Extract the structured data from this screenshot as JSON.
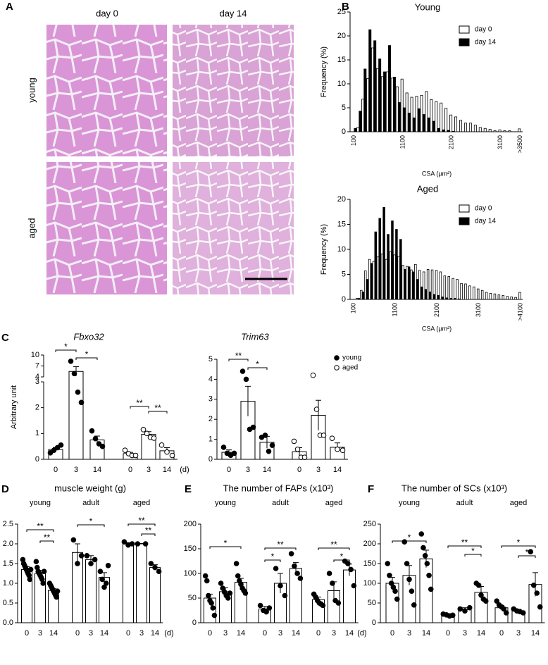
{
  "panels": [
    "A",
    "B",
    "C",
    "D",
    "E",
    "F"
  ],
  "micrographs": {
    "columns": [
      "day 0",
      "day 14"
    ],
    "rows": [
      "young",
      "aged"
    ]
  },
  "chart_data": [
    {
      "type": "bar",
      "title": "Young",
      "xlabel": "CSA (µm²)",
      "ylabel": "Frequency (%)",
      "legend": "upper right",
      "categories": [
        "100",
        null,
        null,
        null,
        null,
        null,
        null,
        null,
        null,
        null,
        "1100",
        null,
        null,
        null,
        null,
        null,
        null,
        null,
        null,
        null,
        "2100",
        null,
        null,
        null,
        null,
        null,
        null,
        null,
        null,
        null,
        "3100",
        null,
        null,
        null,
        ">3500"
      ],
      "series": [
        {
          "name": "day 0",
          "color": "#ffffff",
          "values": [
            0,
            0.9,
            6.8,
            11.1,
            17.5,
            13.2,
            11.5,
            12.5,
            11.2,
            9.4,
            11.0,
            8.1,
            7.2,
            7.4,
            7.6,
            8.4,
            6.7,
            6.3,
            6.0,
            4.9,
            3.5,
            3.1,
            2.4,
            1.8,
            1.8,
            1.4,
            0.9,
            0.7,
            0.5,
            0.2,
            0.4,
            0.2,
            0.2,
            0,
            0.6
          ]
        },
        {
          "name": "day 14",
          "color": "#000000",
          "values": [
            0.7,
            4.3,
            13.1,
            21.3,
            19.0,
            15.2,
            12.5,
            18.0,
            11.4,
            6.1,
            5.0,
            3.9,
            2.9,
            4.8,
            3.6,
            2.9,
            2.2,
            0.7,
            0.4,
            0.3,
            0.1,
            0,
            0,
            0,
            0,
            0,
            0,
            0,
            0,
            0,
            0,
            0,
            0,
            0,
            0
          ]
        }
      ],
      "ylim": [
        0,
        25
      ],
      "yticks": [
        0,
        5,
        10,
        15,
        20,
        25
      ]
    },
    {
      "type": "bar",
      "title": "Aged",
      "xlabel": "CSA (µm²)",
      "ylabel": "Frequency (%)",
      "legend": "upper right",
      "categories": [
        "100",
        null,
        null,
        null,
        null,
        null,
        null,
        null,
        null,
        null,
        "1100",
        null,
        null,
        null,
        null,
        null,
        null,
        null,
        null,
        null,
        "2100",
        null,
        null,
        null,
        null,
        null,
        null,
        null,
        null,
        null,
        "3100",
        null,
        null,
        null,
        null,
        null,
        null,
        null,
        null,
        null,
        ">4100"
      ],
      "series": [
        {
          "name": "day 0",
          "color": "#ffffff",
          "values": [
            0,
            0.2,
            1.8,
            5.7,
            8.0,
            7.6,
            8.5,
            9.1,
            8.0,
            9.5,
            8.9,
            8.6,
            6.8,
            6.6,
            5.9,
            7.0,
            5.8,
            5.5,
            6.0,
            5.9,
            5.8,
            5.5,
            4.7,
            4.6,
            4.2,
            4.0,
            3.2,
            3.1,
            2.7,
            2.5,
            2.1,
            1.8,
            1.4,
            1.2,
            1.1,
            0.9,
            0.8,
            0.6,
            0.5,
            0.4,
            1.4
          ]
        },
        {
          "name": "day 14",
          "color": "#000000",
          "values": [
            0,
            0.2,
            1.5,
            4.0,
            7.2,
            13.5,
            16.2,
            18.4,
            13.0,
            15.7,
            14.0,
            12.0,
            6.0,
            6.5,
            5.5,
            4.0,
            2.5,
            2.0,
            1.5,
            1.0,
            0.8,
            0.5,
            0.3,
            0.2,
            0.2,
            0.1,
            0,
            0,
            0,
            0,
            0,
            0,
            0,
            0,
            0,
            0,
            0,
            0,
            0,
            0,
            0
          ]
        }
      ],
      "ylim": [
        0,
        20
      ],
      "yticks": [
        0,
        5,
        10,
        15,
        20
      ]
    },
    {
      "type": "dotbar",
      "title": "Fbxo32",
      "ylabel": "Arbitrary unit",
      "xunit": "(d)",
      "ylim": [
        0,
        10
      ],
      "ybreak": [
        3,
        4
      ],
      "yticks": [
        0,
        1,
        2,
        3,
        4,
        7,
        10
      ],
      "groups": [
        {
          "marker": "filled",
          "bars": [
            {
              "category": "0",
              "value": 0.38,
              "error": 0.08,
              "points": [
                0.25,
                0.35,
                0.45,
                0.55
              ]
            },
            {
              "category": "3",
              "value": 5.5,
              "error": 1.3,
              "points": [
                8.3,
                4.9,
                2.6,
                2.2
              ]
            },
            {
              "category": "14",
              "value": 0.75,
              "error": 0.15,
              "points": [
                1.1,
                0.8,
                0.6,
                0.5
              ]
            }
          ]
        },
        {
          "marker": "open",
          "bars": [
            {
              "category": "0",
              "value": 0.22,
              "error": 0.05,
              "points": [
                0.35,
                0.22,
                0.15,
                0.15
              ]
            },
            {
              "category": "3",
              "value": 0.97,
              "error": 0.1,
              "points": [
                1.15,
                1.0,
                0.85,
                0.82
              ]
            },
            {
              "category": "14",
              "value": 0.33,
              "error": 0.12,
              "points": [
                0.55,
                0.28,
                0.15
              ]
            }
          ]
        }
      ],
      "significance": [
        "*",
        "*",
        "**",
        "**"
      ]
    },
    {
      "type": "dotbar",
      "title": "Trim63",
      "legend": "upper right",
      "ylim": [
        0,
        5
      ],
      "yticks": [
        0,
        1,
        2,
        3,
        4,
        5
      ],
      "groups": [
        {
          "name": "young",
          "marker": "filled",
          "bars": [
            {
              "category": "0",
              "value": 0.35,
              "error": 0.12,
              "points": [
                0.6,
                0.3,
                0.2,
                0.3
              ]
            },
            {
              "category": "3",
              "value": 2.9,
              "error": 0.75,
              "points": [
                4.4,
                4.0,
                1.5,
                1.6
              ]
            },
            {
              "category": "14",
              "value": 0.85,
              "error": 0.3,
              "points": [
                1.1,
                1.2,
                0.4,
                0.7
              ]
            }
          ]
        },
        {
          "name": "aged",
          "marker": "open",
          "bars": [
            {
              "category": "0",
              "value": 0.38,
              "error": 0.2,
              "points": [
                0.9,
                0.5,
                0.1,
                0.1
              ]
            },
            {
              "category": "3",
              "value": 2.2,
              "error": 0.75,
              "points": [
                4.2,
                2.5,
                1.2,
                1.2
              ]
            },
            {
              "category": "14",
              "value": 0.6,
              "error": 0.22,
              "points": [
                1.05,
                0.5,
                0.45
              ]
            }
          ]
        }
      ],
      "significance": [
        "**",
        "*"
      ]
    },
    {
      "type": "dotbar",
      "title": "muscle weight (g)",
      "xunit": "(d)",
      "ylim": [
        0,
        2.5
      ],
      "yticks": [
        {
          "value": 0,
          "label": "0.0"
        },
        0.5,
        {
          "value": 1,
          "label": "1.0"
        },
        1.5,
        {
          "value": 2,
          "label": "2.0"
        },
        2.5
      ],
      "groups": [
        {
          "name": "young",
          "marker": "filled",
          "bars": [
            {
              "category": "0",
              "value": 1.35,
              "error": 0.07,
              "points": [
                1.6,
                1.5,
                1.45,
                1.4,
                1.35,
                1.3,
                1.25,
                1.2,
                1.1,
                1.35
              ]
            },
            {
              "category": "3",
              "value": 1.25,
              "error": 0.08,
              "points": [
                1.55,
                1.4,
                1.3,
                1.25,
                1.2,
                1.15,
                1.1,
                1.0,
                1.3
              ]
            },
            {
              "category": "14",
              "value": 0.82,
              "error": 0.05,
              "points": [
                1.0,
                0.95,
                0.9,
                0.85,
                0.8,
                0.75,
                0.7,
                0.65,
                0.8
              ]
            }
          ]
        },
        {
          "name": "adult",
          "marker": "filled",
          "bars": [
            {
              "category": "0",
              "value": 1.78,
              "error": 0.22,
              "points": [
                2.1,
                1.5,
                1.7
              ]
            },
            {
              "category": "3",
              "value": 1.6,
              "error": 0.1,
              "points": [
                1.7,
                1.5,
                1.6
              ]
            },
            {
              "category": "14",
              "value": 1.15,
              "error": 0.12,
              "points": [
                1.3,
                1.1,
                0.9,
                1.0,
                1.45
              ]
            }
          ]
        },
        {
          "name": "aged",
          "marker": "filled",
          "bars": [
            {
              "category": "0",
              "value": 2.0,
              "error": 0.03,
              "points": [
                2.05,
                1.97,
                2.0
              ]
            },
            {
              "category": "3",
              "value": 2.0,
              "error": 0.01,
              "points": [
                2.0,
                2.0
              ]
            },
            {
              "category": "14",
              "value": 1.4,
              "error": 0.07,
              "points": [
                1.5,
                1.4,
                1.3
              ]
            }
          ]
        }
      ],
      "significance": [
        "**",
        "**",
        "*",
        "**",
        "**"
      ]
    },
    {
      "type": "dotbar",
      "title": "The number of FAPs (x10³)",
      "xunit": "(d)",
      "ylim": [
        0,
        200
      ],
      "yticks": [
        0,
        50,
        100,
        150,
        200
      ],
      "groups": [
        {
          "name": "young",
          "marker": "filled",
          "bars": [
            {
              "category": "0",
              "value": 50,
              "error": 8,
              "points": [
                95,
                85,
                55,
                45,
                40,
                30,
                15
              ]
            },
            {
              "category": "3",
              "value": 63,
              "error": 8,
              "points": [
                80,
                70,
                62,
                55,
                50,
                60
              ]
            },
            {
              "category": "14",
              "value": 82,
              "error": 8,
              "points": [
                120,
                95,
                85,
                78,
                70,
                65,
                60
              ]
            }
          ]
        },
        {
          "name": "adult",
          "marker": "filled",
          "bars": [
            {
              "category": "0",
              "value": 28,
              "error": 5,
              "points": [
                35,
                25,
                22,
                30
              ]
            },
            {
              "category": "3",
              "value": 80,
              "error": 20,
              "points": [
                110,
                75,
                55
              ]
            },
            {
              "category": "14",
              "value": 110,
              "error": 12,
              "points": [
                140,
                115,
                100,
                90
              ]
            }
          ]
        },
        {
          "name": "aged",
          "marker": "filled",
          "bars": [
            {
              "category": "0",
              "value": 47,
              "error": 5,
              "points": [
                58,
                52,
                45,
                40,
                38,
                35
              ]
            },
            {
              "category": "3",
              "value": 65,
              "error": 18,
              "points": [
                100,
                80,
                45,
                40
              ]
            },
            {
              "category": "14",
              "value": 107,
              "error": 12,
              "points": [
                125,
                120,
                108,
                75
              ]
            }
          ]
        }
      ],
      "significance": [
        "*",
        "**",
        "*",
        "**",
        "*"
      ]
    },
    {
      "type": "dotbar",
      "title": "The number of SCs (x10³)",
      "ylim": [
        0,
        250
      ],
      "yticks": [
        0,
        50,
        100,
        150,
        200,
        250
      ],
      "groups": [
        {
          "name": "young",
          "marker": "filled",
          "bars": [
            {
              "category": "0",
              "value": 100,
              "error": 15,
              "points": [
                150,
                120,
                100,
                90,
                80,
                60
              ]
            },
            {
              "category": "3",
              "value": 120,
              "error": 25,
              "points": [
                205,
                150,
                110,
                80,
                45
              ]
            },
            {
              "category": "14",
              "value": 162,
              "error": 22,
              "points": [
                225,
                190,
                170,
                150,
                120,
                85
              ]
            }
          ]
        },
        {
          "name": "adult",
          "marker": "filled",
          "bars": [
            {
              "category": "0",
              "value": 20,
              "error": 3,
              "points": [
                22,
                20,
                17,
                19
              ]
            },
            {
              "category": "3",
              "value": 33,
              "error": 5,
              "points": [
                35,
                30,
                38
              ]
            },
            {
              "category": "14",
              "value": 77,
              "error": 15,
              "points": [
                100,
                95,
                70,
                60,
                55
              ]
            }
          ]
        },
        {
          "name": "aged",
          "marker": "filled",
          "bars": [
            {
              "category": "0",
              "value": 38,
              "error": 6,
              "points": [
                55,
                45,
                40,
                35,
                25
              ]
            },
            {
              "category": "3",
              "value": 30,
              "error": 4,
              "points": [
                35,
                30,
                28,
                25
              ]
            },
            {
              "category": "14",
              "value": 97,
              "error": 30,
              "points": [
                180,
                95,
                75,
                40
              ]
            }
          ]
        }
      ],
      "significance": [
        "*",
        "**",
        "*",
        "*",
        "*"
      ]
    }
  ]
}
